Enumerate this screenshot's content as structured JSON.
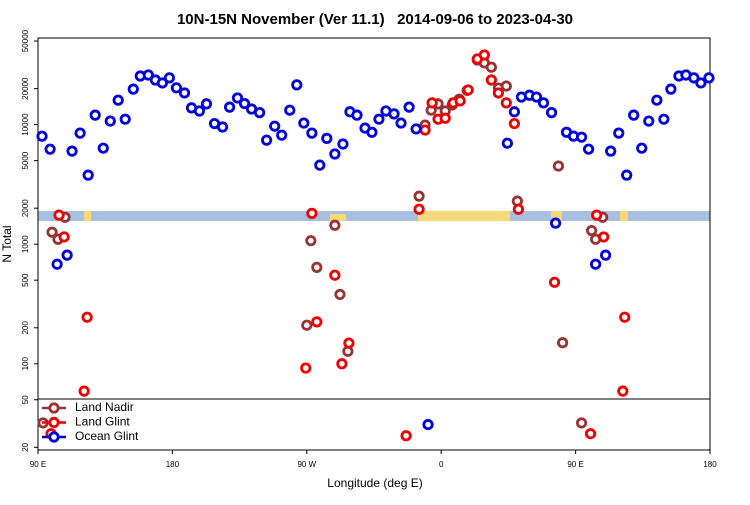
{
  "chart_data": {
    "type": "scatter",
    "title": "10N-15N November (Ver 11.1)   2014-09-06 to 2023-04-30",
    "x_label": "Longitude (deg E)",
    "y_label": "N Total",
    "y_scale": "log",
    "xlim": [
      90,
      540
    ],
    "ylim": [
      19,
      53000
    ],
    "xticks": [
      {
        "value": 90,
        "label": "90 E"
      },
      180,
      {
        "value": 270,
        "label": "90 W"
      },
      {
        "value": 360,
        "label": "0"
      },
      {
        "value": 450,
        "label": "90 E"
      },
      {
        "value": 540,
        "label": "180"
      }
    ],
    "yticks": [
      20,
      50,
      100,
      200,
      500,
      1000,
      2000,
      5000,
      10000,
      20000,
      50000
    ],
    "legend": "bottom-left",
    "series": [
      {
        "name": "Land Nadir",
        "color": "#993333",
        "x": [
          93.4,
          99.4,
          103.4,
          108.1,
          272.7,
          276.7,
          288.8,
          292.2,
          270,
          297.5,
          345.2,
          349.2,
          353.3,
          357.9,
          362.7,
          367.4,
          372.1,
          377.4,
          384.2,
          388.9,
          393.6,
          398.3,
          403.6,
          411,
          438.5,
          460.7,
          463.4,
          468.1,
          441.3,
          454
        ],
        "values": [
          32,
          1260,
          1100,
          1680,
          1070,
          640,
          1440,
          380,
          210,
          127,
          2520,
          9900,
          13200,
          14900,
          13000,
          14600,
          16300,
          19300,
          34700,
          32800,
          30200,
          20200,
          21000,
          2290,
          4500,
          1300,
          1100,
          1680,
          150,
          32
        ]
      },
      {
        "name": "Land Glint",
        "color": "#ee0000",
        "x": [
          98.7,
          104.1,
          107.5,
          122.9,
          120.9,
          273.4,
          276.7,
          269.3,
          288.8,
          293.5,
          298.2,
          345.2,
          349.2,
          353.9,
          357.9,
          362.7,
          368,
          372.7,
          378.1,
          384.2,
          388.9,
          393.6,
          398.3,
          403.6,
          409,
          411.7,
          435.9,
          464.1,
          468.8,
          482.9,
          481.6,
          336.5,
          460
        ],
        "values": [
          26,
          1750,
          1150,
          245,
          59,
          1810,
          224,
          92,
          550,
          100,
          149,
          1960,
          9000,
          15200,
          11100,
          11300,
          15200,
          15800,
          19500,
          35400,
          38200,
          23600,
          18400,
          15200,
          10200,
          1960,
          480,
          1750,
          1150,
          245,
          59,
          25,
          26
        ]
      },
      {
        "name": "Ocean Glint",
        "color": "#0000dd",
        "x": [
          92.7,
          98.1,
          112.8,
          118.2,
          123.6,
          128.3,
          133.7,
          138.4,
          143.7,
          148.4,
          153.8,
          158.5,
          163.9,
          168.6,
          173.3,
          178,
          182.7,
          188.1,
          192.8,
          198.1,
          202.8,
          208.2,
          213.6,
          218.3,
          223.6,
          228.3,
          233,
          238.4,
          243.1,
          248.5,
          253.2,
          258.6,
          263.3,
          268,
          273.4,
          278.7,
          283.4,
          288.8,
          294.2,
          298.9,
          303.6,
          309,
          313.6,
          318.3,
          323,
          328.4,
          333.1,
          338.5,
          343.2,
          404.3,
          409,
          413.7,
          419.1,
          423.8,
          428.5,
          433.9,
          443.9,
          448.6,
          454,
          458.7,
          473.5,
          478.9,
          484.2,
          488.9,
          494.3,
          499,
          504.4,
          509.1,
          513.8,
          519.2,
          523.9,
          529.2,
          533.9,
          539.3,
          102.8,
          109.5,
          436.6,
          463.4,
          470.1,
          351.2
        ],
        "values": [
          8000,
          6230,
          6000,
          8490,
          3780,
          12000,
          6350,
          10700,
          16000,
          11100,
          19800,
          25500,
          26000,
          23600,
          22300,
          24600,
          20300,
          18400,
          13800,
          13000,
          14900,
          10200,
          9550,
          14000,
          16700,
          15000,
          13500,
          12600,
          7410,
          9700,
          8160,
          13200,
          21500,
          10300,
          8490,
          4580,
          7670,
          5680,
          6880,
          12800,
          12000,
          9350,
          8630,
          11100,
          13000,
          12300,
          10300,
          14000,
          9200,
          6990,
          12800,
          17000,
          17600,
          17000,
          15200,
          12600,
          8630,
          8010,
          7850,
          6230,
          6000,
          8490,
          3780,
          12000,
          6350,
          10700,
          16000,
          11100,
          19800,
          25500,
          26000,
          24600,
          22300,
          24600,
          680,
          810,
          1500,
          680,
          810,
          31
        ]
      }
    ]
  }
}
